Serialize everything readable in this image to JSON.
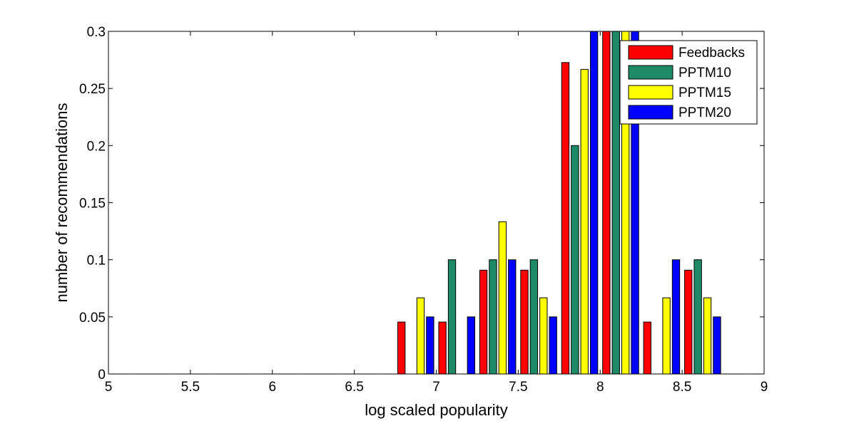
{
  "chart_data": {
    "type": "bar",
    "title": "",
    "xlabel": "log scaled popularity",
    "ylabel": "number of recommendations",
    "xlim": [
      5,
      9
    ],
    "ylim": [
      0,
      0.3
    ],
    "x_ticks": [
      "5",
      "5.5",
      "6",
      "6.5",
      "7",
      "7.5",
      "8",
      "8.5",
      "9"
    ],
    "y_ticks": [
      "0",
      "0.05",
      "0.1",
      "0.15",
      "0.2",
      "0.25",
      "0.3"
    ],
    "grid": false,
    "legend_position": "top-right",
    "bin_centers": [
      5.125,
      5.375,
      5.625,
      5.875,
      6.125,
      6.375,
      6.625,
      6.875,
      7.125,
      7.375,
      7.625,
      7.875,
      8.125,
      8.375,
      8.625,
      8.875
    ],
    "series": [
      {
        "name": "Feedbacks",
        "color": "#ff0000",
        "values": [
          0,
          0,
          0,
          0,
          0,
          0,
          0,
          0.0455,
          0.0455,
          0.0909,
          0.0909,
          0.2727,
          0.3,
          0.0455,
          0.0909,
          0
        ]
      },
      {
        "name": "PPTM10",
        "color": "#1f8a68",
        "values": [
          0,
          0,
          0,
          0,
          0,
          0,
          0,
          0,
          0.1,
          0.1,
          0.1,
          0.2,
          0.3,
          0,
          0.1,
          0
        ]
      },
      {
        "name": "PPTM15",
        "color": "#ffff00",
        "values": [
          0,
          0,
          0,
          0,
          0,
          0,
          0,
          0.0667,
          0,
          0.1333,
          0.0667,
          0.2667,
          0.3,
          0.0667,
          0.0667,
          0
        ]
      },
      {
        "name": "PPTM20",
        "color": "#0000ff",
        "values": [
          0,
          0,
          0,
          0,
          0,
          0,
          0,
          0.05,
          0.05,
          0.1,
          0.05,
          0.3,
          0.3,
          0.1,
          0.05,
          0
        ]
      }
    ]
  }
}
